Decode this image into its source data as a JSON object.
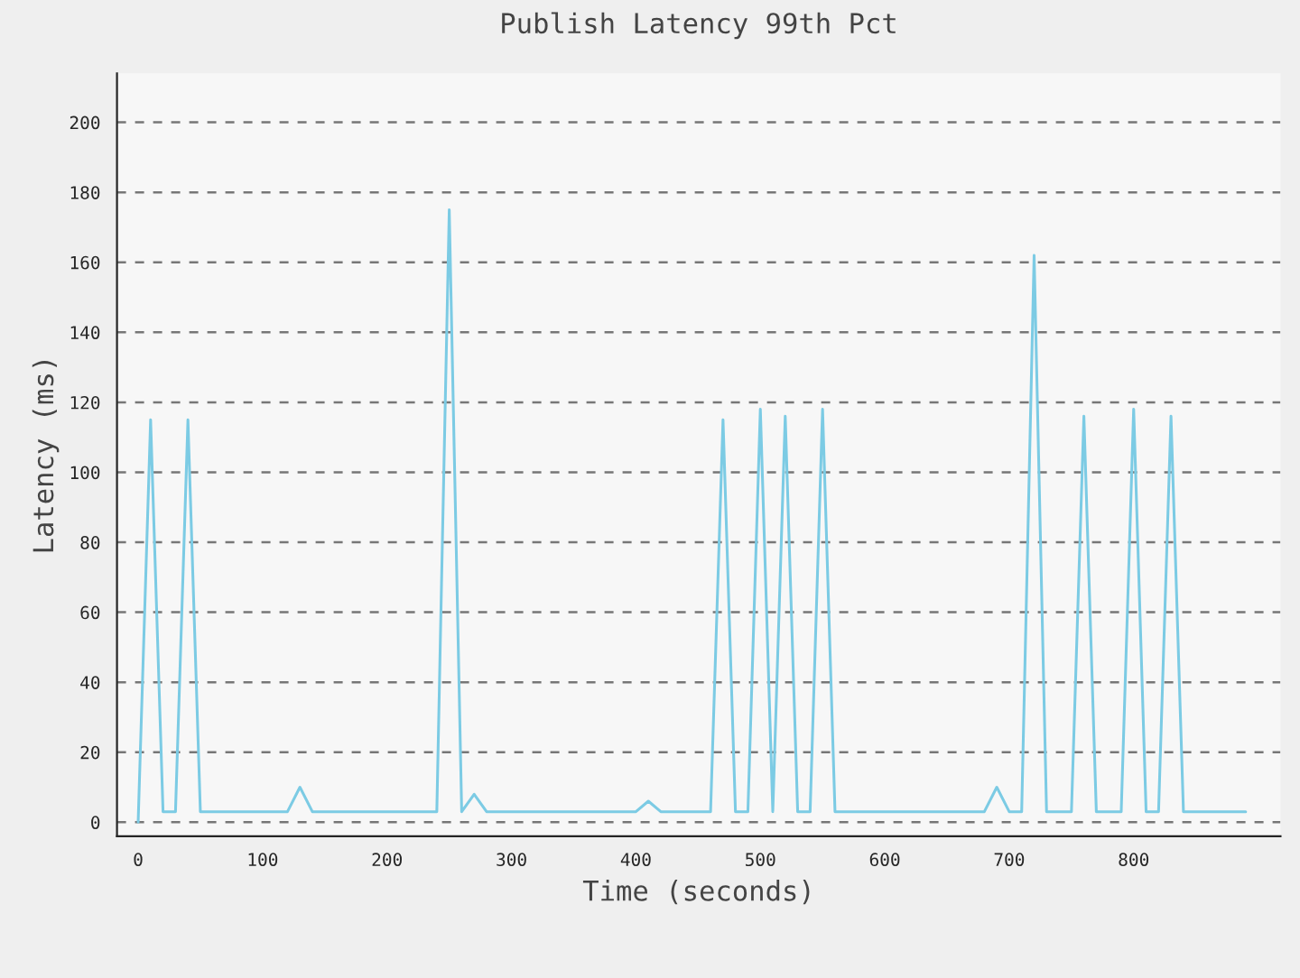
{
  "chart_data": {
    "type": "line",
    "title": "Publish Latency 99th Pct",
    "xlabel": "Time (seconds)",
    "ylabel": "Latency (ms)",
    "x": [
      0,
      10,
      20,
      30,
      40,
      50,
      60,
      70,
      80,
      90,
      100,
      110,
      120,
      130,
      140,
      150,
      160,
      170,
      180,
      190,
      200,
      210,
      220,
      230,
      240,
      250,
      260,
      270,
      280,
      290,
      300,
      310,
      320,
      330,
      340,
      350,
      360,
      370,
      380,
      390,
      400,
      410,
      420,
      430,
      440,
      450,
      460,
      470,
      480,
      490,
      500,
      510,
      520,
      530,
      540,
      550,
      560,
      570,
      580,
      590,
      600,
      610,
      620,
      630,
      640,
      650,
      660,
      670,
      680,
      690,
      700,
      710,
      720,
      730,
      740,
      750,
      760,
      770,
      780,
      790,
      800,
      810,
      820,
      830,
      840,
      850,
      860,
      870,
      880,
      890
    ],
    "series": [
      {
        "color": "#7ccbe4",
        "values": [
          0,
          115,
          3,
          3,
          115,
          3,
          3,
          3,
          3,
          3,
          3,
          3,
          3,
          10,
          3,
          3,
          3,
          3,
          3,
          3,
          3,
          3,
          3,
          3,
          3,
          175,
          3,
          8,
          3,
          3,
          3,
          3,
          3,
          3,
          3,
          3,
          3,
          3,
          3,
          3,
          3,
          6,
          3,
          3,
          3,
          3,
          3,
          115,
          3,
          3,
          118,
          3,
          116,
          3,
          3,
          118,
          3,
          3,
          3,
          3,
          3,
          3,
          3,
          3,
          3,
          3,
          3,
          3,
          3,
          10,
          3,
          3,
          162,
          3,
          3,
          3,
          116,
          3,
          3,
          3,
          118,
          3,
          3,
          116,
          3,
          3,
          3,
          3,
          3,
          3
        ]
      }
    ],
    "xlim": [
      -17,
      918
    ],
    "ylim": [
      -4,
      214
    ],
    "xticks": [
      0,
      100,
      200,
      300,
      400,
      500,
      600,
      700,
      800
    ],
    "yticks": [
      0,
      20,
      40,
      60,
      80,
      100,
      120,
      140,
      160,
      180,
      200
    ],
    "grid": "y",
    "marker": "none",
    "line_style": "solid"
  }
}
